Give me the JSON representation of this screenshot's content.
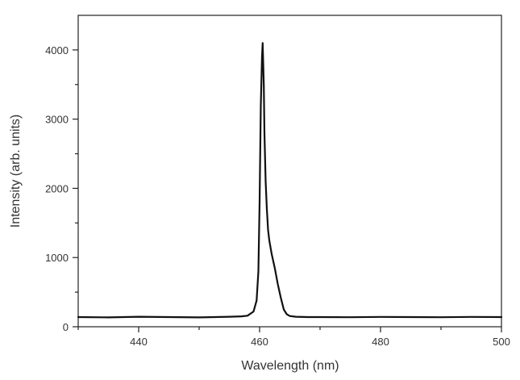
{
  "chart_data": {
    "type": "line",
    "title": "",
    "xlabel": "Wavelength (nm)",
    "ylabel": "Intensity (arb. units)",
    "xlim": [
      430,
      500
    ],
    "ylim": [
      0,
      4500
    ],
    "x_ticks": [
      440,
      460,
      480,
      500
    ],
    "x_tick_labels": [
      "440",
      "460",
      "480",
      "500"
    ],
    "x_minor_ticks": [
      430,
      450,
      470,
      490
    ],
    "y_ticks": [
      0,
      1000,
      2000,
      3000,
      4000
    ],
    "y_tick_labels": [
      "0",
      "1000",
      "2000",
      "3000",
      "4000"
    ],
    "y_minor_ticks": [
      500,
      1500,
      2500,
      3500
    ],
    "grid": false,
    "legend": "none",
    "line_color": "#111111",
    "series": [
      {
        "x": [
          430,
          435,
          440,
          445,
          450,
          455,
          457,
          458,
          459,
          459.5,
          459.8,
          460.0,
          460.2,
          460.4,
          460.5,
          460.6,
          460.7,
          460.8,
          461.0,
          461.2,
          461.4,
          461.6,
          462.0,
          462.5,
          463.0,
          463.5,
          464.0,
          464.5,
          465.0,
          466.0,
          468.0,
          470,
          475,
          480,
          485,
          490,
          495,
          500
        ],
        "y": [
          140,
          135,
          145,
          140,
          135,
          145,
          150,
          160,
          220,
          380,
          800,
          1800,
          3200,
          3900,
          4100,
          3800,
          3500,
          2800,
          2100,
          1700,
          1400,
          1250,
          1050,
          850,
          620,
          420,
          250,
          180,
          155,
          145,
          140,
          140,
          138,
          142,
          140,
          138,
          142,
          140
        ]
      }
    ]
  }
}
